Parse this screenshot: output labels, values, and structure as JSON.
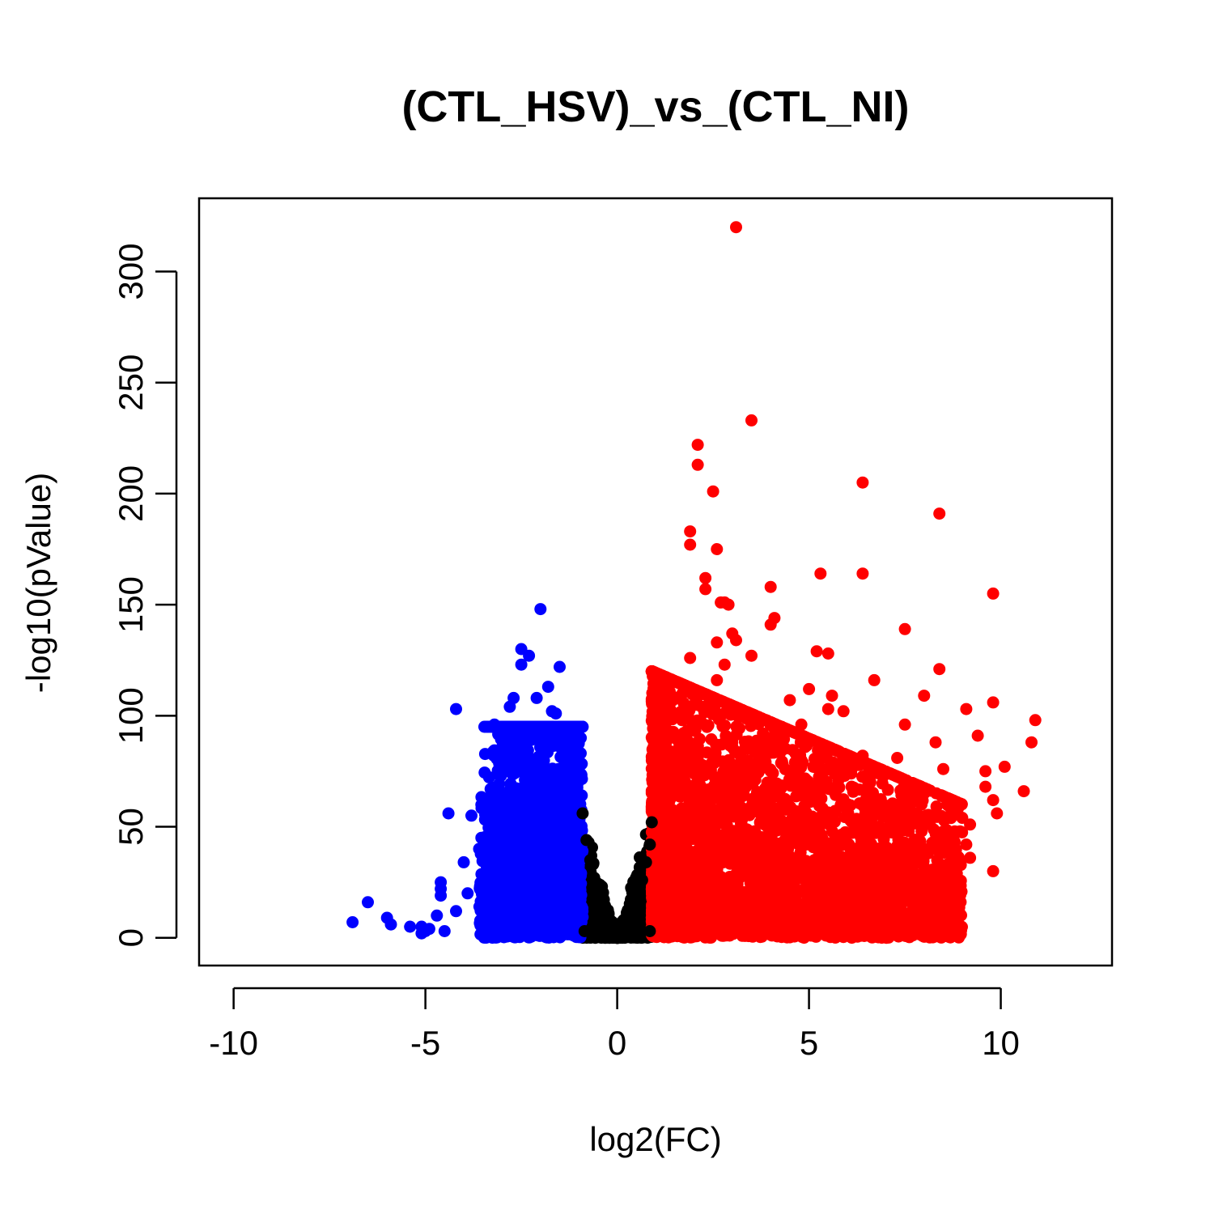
{
  "chart_data": {
    "type": "scatter",
    "title": "(CTL_HSV)_vs_(CTL_NI)",
    "xlabel": "log2(FC)",
    "ylabel": "-log10(pValue)",
    "xlim": [
      -10.9,
      12.9
    ],
    "ylim": [
      -12.5,
      333
    ],
    "xticks": [
      -10,
      -5,
      0,
      5,
      10
    ],
    "xtick_labels": [
      "-10",
      "-5",
      "0",
      "5",
      "10"
    ],
    "yticks": [
      0,
      50,
      100,
      150,
      200,
      250,
      300
    ],
    "ytick_labels": [
      "0",
      "50",
      "100",
      "150",
      "200",
      "250",
      "300"
    ],
    "grid": false,
    "legend": "none",
    "colors": {
      "down": "#0000ff",
      "ns": "#000000",
      "up": "#ff0000"
    },
    "series": [
      {
        "color": "#0000ff",
        "points": [
          [
            -2.0,
            148
          ],
          [
            -2.5,
            130
          ],
          [
            -2.3,
            127
          ],
          [
            -2.5,
            123
          ],
          [
            -1.5,
            122
          ],
          [
            -1.8,
            113
          ],
          [
            -2.1,
            108
          ],
          [
            -2.7,
            108
          ],
          [
            -2.8,
            104
          ],
          [
            -4.2,
            103
          ],
          [
            -1.7,
            102
          ],
          [
            -1.6,
            101
          ],
          [
            -3.2,
            96
          ],
          [
            -3.1,
            93
          ],
          [
            -2.4,
            92
          ],
          [
            -2.0,
            90
          ],
          [
            -2.9,
            86
          ],
          [
            -2.9,
            82
          ],
          [
            -3.3,
            67
          ],
          [
            -3.5,
            60
          ],
          [
            -4.4,
            56
          ],
          [
            -3.8,
            55
          ],
          [
            -3.4,
            44
          ],
          [
            -3.6,
            40
          ],
          [
            -4.0,
            34
          ],
          [
            -3.5,
            28
          ],
          [
            -4.6,
            25
          ],
          [
            -4.6,
            22
          ],
          [
            -3.9,
            20
          ],
          [
            -4.6,
            19
          ],
          [
            -6.5,
            16
          ],
          [
            -4.2,
            12
          ],
          [
            -4.7,
            10
          ],
          [
            -6.0,
            9
          ],
          [
            -6.9,
            7
          ],
          [
            -5.9,
            6
          ],
          [
            -5.4,
            5
          ],
          [
            -5.1,
            5
          ],
          [
            -4.9,
            4
          ],
          [
            -5.0,
            3
          ],
          [
            -5.1,
            2
          ],
          [
            -4.5,
            3
          ]
        ]
      },
      {
        "color": "#000000",
        "points": [
          [
            -0.9,
            56
          ],
          [
            0.9,
            52
          ],
          [
            -0.8,
            44
          ],
          [
            0.85,
            42
          ],
          [
            -0.7,
            35
          ],
          [
            0.75,
            34
          ],
          [
            -0.6,
            27
          ],
          [
            0.65,
            26
          ],
          [
            -0.5,
            20
          ],
          [
            0.55,
            19
          ],
          [
            -0.4,
            14
          ],
          [
            0.45,
            13
          ],
          [
            -0.3,
            8
          ],
          [
            0.3,
            8
          ],
          [
            -0.2,
            4
          ],
          [
            0.2,
            4
          ],
          [
            -0.1,
            2
          ],
          [
            0.1,
            2
          ],
          [
            0.0,
            0.5
          ],
          [
            -0.85,
            3
          ],
          [
            0.85,
            3
          ]
        ]
      },
      {
        "color": "#ff0000",
        "points": [
          [
            3.1,
            320
          ],
          [
            3.5,
            233
          ],
          [
            2.1,
            222
          ],
          [
            2.1,
            213
          ],
          [
            6.4,
            205
          ],
          [
            2.5,
            201
          ],
          [
            8.4,
            191
          ],
          [
            1.9,
            183
          ],
          [
            1.9,
            177
          ],
          [
            2.6,
            175
          ],
          [
            6.4,
            164
          ],
          [
            5.3,
            164
          ],
          [
            2.3,
            162
          ],
          [
            4.0,
            158
          ],
          [
            9.8,
            155
          ],
          [
            2.3,
            157
          ],
          [
            2.7,
            151
          ],
          [
            2.8,
            151
          ],
          [
            2.9,
            150
          ],
          [
            4.1,
            144
          ],
          [
            4.0,
            141
          ],
          [
            7.5,
            139
          ],
          [
            3.0,
            137
          ],
          [
            3.1,
            134
          ],
          [
            2.6,
            133
          ],
          [
            5.2,
            129
          ],
          [
            5.5,
            128
          ],
          [
            1.9,
            126
          ],
          [
            3.5,
            127
          ],
          [
            2.8,
            123
          ],
          [
            8.4,
            121
          ],
          [
            6.7,
            116
          ],
          [
            5.0,
            112
          ],
          [
            8.0,
            109
          ],
          [
            5.6,
            109
          ],
          [
            9.8,
            106
          ],
          [
            4.5,
            107
          ],
          [
            9.1,
            103
          ],
          [
            5.5,
            103
          ],
          [
            5.9,
            102
          ],
          [
            10.9,
            98
          ],
          [
            7.5,
            96
          ],
          [
            4.8,
            96
          ],
          [
            9.4,
            91
          ],
          [
            8.3,
            88
          ],
          [
            10.8,
            88
          ],
          [
            6.4,
            82
          ],
          [
            7.3,
            81
          ],
          [
            10.1,
            77
          ],
          [
            8.5,
            76
          ],
          [
            9.6,
            75
          ],
          [
            6.1,
            74
          ],
          [
            6.6,
            70
          ],
          [
            9.6,
            68
          ],
          [
            10.6,
            66
          ],
          [
            8.0,
            65
          ],
          [
            5.1,
            67
          ],
          [
            9.8,
            62
          ],
          [
            8.6,
            60
          ],
          [
            9.9,
            56
          ],
          [
            9.2,
            51
          ],
          [
            7.3,
            52
          ],
          [
            5.4,
            53
          ],
          [
            9.1,
            42
          ],
          [
            6.3,
            49
          ],
          [
            9.2,
            36
          ],
          [
            8.7,
            30
          ],
          [
            9.8,
            30
          ],
          [
            7.8,
            26
          ],
          [
            8.4,
            14
          ],
          [
            8.6,
            12
          ],
          [
            7.9,
            8
          ],
          [
            7.1,
            10
          ],
          [
            1.8,
            6
          ],
          [
            2.2,
            14
          ],
          [
            2.7,
            22
          ],
          [
            3.4,
            10
          ],
          [
            4.1,
            18
          ],
          [
            4.6,
            6
          ],
          [
            5.3,
            3
          ],
          [
            6.2,
            9
          ],
          [
            6.8,
            4
          ],
          [
            1.2,
            44
          ],
          [
            1.4,
            80
          ],
          [
            1.6,
            68
          ],
          [
            1.3,
            58
          ],
          [
            2.4,
            46
          ],
          [
            2.0,
            95
          ],
          [
            2.9,
            74
          ],
          [
            3.6,
            62
          ],
          [
            4.3,
            50
          ],
          [
            4.9,
            42
          ],
          [
            5.7,
            38
          ],
          [
            6.5,
            30
          ],
          [
            7.2,
            24
          ],
          [
            3.0,
            88
          ],
          [
            2.2,
            104
          ],
          [
            4.8,
            80
          ],
          [
            6.0,
            60
          ],
          [
            7.6,
            48
          ],
          [
            8.1,
            38
          ],
          [
            3.8,
            92
          ],
          [
            1.7,
            110
          ],
          [
            2.6,
            116
          ],
          [
            3.3,
            100
          ]
        ]
      }
    ],
    "density": {
      "down": {
        "x_min": -3.6,
        "x_max": -0.9,
        "y_scale": 58,
        "count": 1900
      },
      "ns": {
        "x_half_width": 0.9,
        "y_scale": 58,
        "count": 900
      },
      "up": {
        "x_min": 0.9,
        "x_max": 9.0,
        "y_scale": 62,
        "count": 3600
      }
    }
  }
}
